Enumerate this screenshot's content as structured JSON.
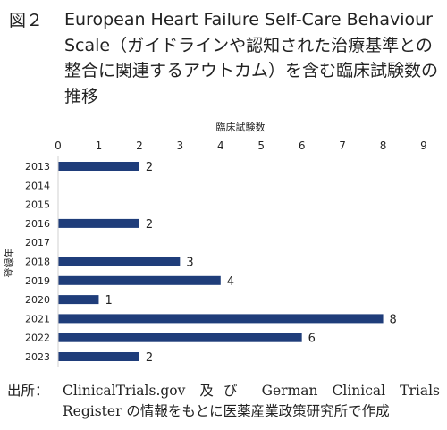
{
  "figure": {
    "label": "図２",
    "title": "European Heart Failure Self-Care Behaviour Scale（ガイドラインや認知された治療基準との整合に関連するアウトカム）を含む臨床試験数の推移"
  },
  "source": {
    "label": "出所：",
    "text": "ClinicalTrials.gov 及び German Clinical Trials Register の情報をもとに医薬産業政策研究所で作成"
  },
  "chart_data": {
    "type": "bar",
    "orientation": "horizontal",
    "xlabel": "臨床試験数",
    "ylabel": "登録年",
    "xlim": [
      0,
      9
    ],
    "x_ticks": [
      "0",
      "1",
      "2",
      "3",
      "4",
      "5",
      "6",
      "7",
      "8",
      "9"
    ],
    "x_axis_position": "top",
    "grid": false,
    "categories": [
      "2013",
      "2014",
      "2015",
      "2016",
      "2017",
      "2018",
      "2019",
      "2020",
      "2021",
      "2022",
      "2023"
    ],
    "values": [
      2,
      0,
      0,
      2,
      0,
      3,
      4,
      1,
      8,
      6,
      2
    ],
    "data_labels": [
      "2",
      "",
      "",
      "2",
      "",
      "3",
      "4",
      "1",
      "8",
      "6",
      "2"
    ],
    "bar_color": "#1f3d7a"
  }
}
